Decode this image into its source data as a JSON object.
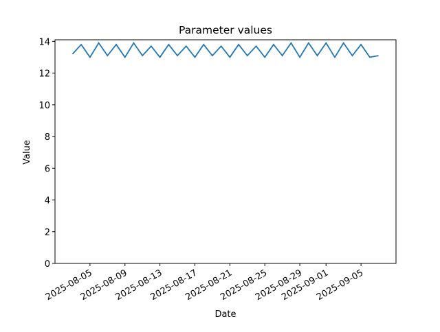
{
  "chart_data": {
    "type": "line",
    "title": "Parameter values",
    "xlabel": "Date",
    "ylabel": "Value",
    "x": [
      "2025-08-03",
      "2025-08-04",
      "2025-08-05",
      "2025-08-06",
      "2025-08-07",
      "2025-08-08",
      "2025-08-09",
      "2025-08-10",
      "2025-08-11",
      "2025-08-12",
      "2025-08-13",
      "2025-08-14",
      "2025-08-15",
      "2025-08-16",
      "2025-08-17",
      "2025-08-18",
      "2025-08-19",
      "2025-08-20",
      "2025-08-21",
      "2025-08-22",
      "2025-08-23",
      "2025-08-24",
      "2025-08-25",
      "2025-08-26",
      "2025-08-27",
      "2025-08-28",
      "2025-08-29",
      "2025-08-30",
      "2025-08-31",
      "2025-09-01",
      "2025-09-02",
      "2025-09-03",
      "2025-09-04",
      "2025-09-05",
      "2025-09-06",
      "2025-09-07"
    ],
    "series": [
      {
        "name": "Value",
        "color": "#1f77b4",
        "values": [
          13.2,
          13.8,
          13.0,
          13.9,
          13.1,
          13.8,
          13.0,
          13.9,
          13.1,
          13.7,
          13.0,
          13.8,
          13.1,
          13.7,
          13.0,
          13.8,
          13.1,
          13.7,
          13.0,
          13.8,
          13.1,
          13.7,
          13.0,
          13.8,
          13.1,
          13.9,
          13.0,
          13.9,
          13.1,
          13.9,
          13.0,
          13.9,
          13.1,
          13.8,
          13.0,
          13.1
        ]
      }
    ],
    "xlim": [
      "2025-08-01",
      "2025-09-09"
    ],
    "xticks": [
      "2025-08-05",
      "2025-08-09",
      "2025-08-13",
      "2025-08-17",
      "2025-08-21",
      "2025-08-25",
      "2025-08-29",
      "2025-09-01",
      "2025-09-05"
    ],
    "ylim": [
      0,
      14.1
    ],
    "yticks": [
      0,
      2,
      4,
      6,
      8,
      10,
      12,
      14
    ]
  }
}
